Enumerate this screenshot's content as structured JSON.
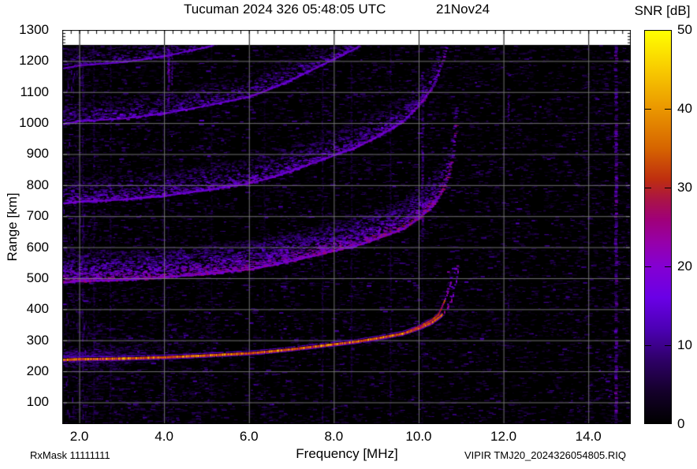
{
  "header": {
    "title": "Tucuman 2024 326 05:48:05 UTC",
    "date": "21Nov24",
    "colorbar_title": "SNR [dB]"
  },
  "axes": {
    "y_label": "Range [km]",
    "x_label": "Frequency [MHz]",
    "y_tick_labels": [
      "1300",
      "1200",
      "1100",
      "1000",
      "900",
      "800",
      "700",
      "600",
      "500",
      "400",
      "300",
      "200",
      "100"
    ],
    "x_tick_labels": [
      "2.0",
      "4.0",
      "6.0",
      "8.0",
      "10.0",
      "12.0",
      "14.0"
    ],
    "colorbar_tick_labels": [
      "50",
      "40",
      "30",
      "20",
      "10",
      "0"
    ]
  },
  "footer": {
    "rx_mask": "RxMask 11111111",
    "file_label": "VIPIR  TMJ20_2024326054805.RIQ"
  },
  "chart_data": {
    "type": "heatmap",
    "title": "Tucuman 2024 326 05:48:05 UTC  21Nov24",
    "xlabel": "Frequency [MHz]",
    "ylabel": "Range [km]",
    "colorbar_label": "SNR [dB]",
    "x_range_mhz": [
      1.6,
      15.0
    ],
    "y_range_km": [
      30,
      1300
    ],
    "data_top_km": 1250,
    "snr_range_db": [
      0,
      50
    ],
    "x_ticks_mhz": [
      2,
      4,
      6,
      8,
      10,
      12,
      14
    ],
    "y_ticks_km": [
      1300,
      1200,
      1100,
      1000,
      900,
      800,
      700,
      600,
      500,
      400,
      300,
      200,
      100
    ],
    "colorbar_ticks_db": [
      50,
      40,
      30,
      20,
      10,
      0
    ],
    "grid": true,
    "legend_position": "right-colorbar",
    "palette_stops": [
      {
        "p": 0.0,
        "c": "#000000"
      },
      {
        "p": 0.08,
        "c": "#14002a"
      },
      {
        "p": 0.16,
        "c": "#2e0066"
      },
      {
        "p": 0.24,
        "c": "#4c00b4"
      },
      {
        "p": 0.32,
        "c": "#6a00e6"
      },
      {
        "p": 0.4,
        "c": "#8400d2"
      },
      {
        "p": 0.46,
        "c": "#9600aa"
      },
      {
        "p": 0.52,
        "c": "#a00078"
      },
      {
        "p": 0.57,
        "c": "#aa1446"
      },
      {
        "p": 0.62,
        "c": "#be2d10"
      },
      {
        "p": 0.7,
        "c": "#d66400"
      },
      {
        "p": 0.8,
        "c": "#ea9600"
      },
      {
        "p": 0.9,
        "c": "#f8ca00"
      },
      {
        "p": 1.0,
        "c": "#ffff00"
      }
    ],
    "main_trace": {
      "name": "F-region echo (1st hop, O/X split near cusp)",
      "f_mhz": [
        1.6,
        2.0,
        3.0,
        4.0,
        5.0,
        6.0,
        6.5,
        7.0,
        8.0,
        8.5,
        9.0,
        9.6,
        10.0,
        10.3,
        10.5,
        10.65,
        10.75,
        10.82,
        10.88,
        10.92
      ],
      "range_km": [
        238,
        240,
        242,
        246,
        252,
        259,
        265,
        272,
        288,
        296,
        307,
        322,
        340,
        358,
        378,
        400,
        425,
        455,
        495,
        530
      ],
      "peak_snr_db": 45,
      "fof2_mhz_approx": 10.9,
      "x_branch_start_mhz": 9.75,
      "x_branch_end_mhz": 10.82
    },
    "multiples": [
      {
        "order": 2,
        "mult": 2.05,
        "f_end_mhz": 10.88,
        "spread_km": 95,
        "density": 9,
        "smax": 0.5
      },
      {
        "order": 3,
        "mult": 3.12,
        "f_end_mhz": 10.7,
        "spread_km": 85,
        "density": 5,
        "smax": 0.4
      },
      {
        "order": 4,
        "mult": 4.2,
        "f_end_mhz": 10.55,
        "spread_km": 75,
        "density": 3.5,
        "smax": 0.36
      },
      {
        "order": 5,
        "mult": 4.95,
        "f_end_mhz": 6.8,
        "spread_km": 65,
        "density": 2.5,
        "smax": 0.33
      }
    ],
    "rfi_stripes": [
      {
        "f": 2.07,
        "w": 2,
        "a": 0.5,
        "lo": 30,
        "hi": 1250,
        "st": 0.8
      },
      {
        "f": 2.33,
        "w": 2,
        "a": 0.4,
        "lo": 30,
        "hi": 1250,
        "st": 0.7
      },
      {
        "f": 2.72,
        "w": 2,
        "a": 0.45,
        "lo": 30,
        "hi": 1250,
        "st": 0.7
      },
      {
        "f": 3.96,
        "w": 2,
        "a": 0.35,
        "lo": 30,
        "hi": 1250,
        "st": 0.6
      },
      {
        "f": 4.08,
        "w": 3,
        "a": 0.9,
        "lo": 1060,
        "hi": 1252,
        "st": 1.3
      },
      {
        "f": 4.17,
        "w": 2,
        "a": 0.8,
        "lo": 1090,
        "hi": 1252,
        "st": 1.2
      },
      {
        "f": 4.08,
        "w": 2,
        "a": 0.3,
        "lo": 30,
        "hi": 1060,
        "st": 0.5
      },
      {
        "f": 5.1,
        "w": 2,
        "a": 0.25,
        "lo": 30,
        "hi": 1250,
        "st": 0.5
      },
      {
        "f": 6.35,
        "w": 2,
        "a": 0.3,
        "lo": 30,
        "hi": 1250,
        "st": 0.5
      },
      {
        "f": 7.72,
        "w": 2,
        "a": 0.45,
        "lo": 30,
        "hi": 1250,
        "st": 0.7
      },
      {
        "f": 8.4,
        "w": 2,
        "a": 0.4,
        "lo": 150,
        "hi": 1250,
        "st": 0.6
      },
      {
        "f": 9.32,
        "w": 2,
        "a": 0.45,
        "lo": 30,
        "hi": 1250,
        "st": 0.7
      },
      {
        "f": 10.07,
        "w": 3,
        "a": 0.8,
        "lo": 620,
        "hi": 1170,
        "st": 1.1
      },
      {
        "f": 10.07,
        "w": 2,
        "a": 0.3,
        "lo": 30,
        "hi": 620,
        "st": 0.5
      },
      {
        "f": 12.1,
        "w": 2,
        "a": 0.7,
        "lo": 1000,
        "hi": 1100,
        "st": 1.0
      },
      {
        "f": 12.1,
        "w": 2,
        "a": 0.6,
        "lo": 360,
        "hi": 455,
        "st": 0.9
      },
      {
        "f": 14.62,
        "w": 4,
        "a": 0.9,
        "lo": 30,
        "hi": 1252,
        "st": 1.25
      }
    ],
    "quiet_gaps_mhz": [
      5.75,
      12.82
    ],
    "noise": {
      "seed": 20241121,
      "dashes": 26000
    }
  }
}
